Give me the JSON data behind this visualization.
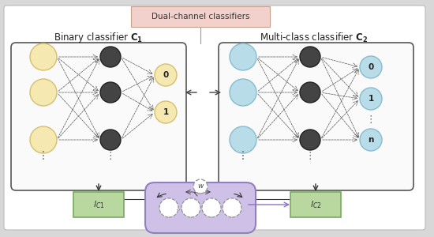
{
  "bg_color": "#d8d8d8",
  "panel_bg": "#ffffff",
  "title_box_color": "#f2d0cc",
  "title_box_edge": "#c8a090",
  "title_text": "Dual-channel classifiers",
  "left_title": "Binary classifier $\\mathbf{C_1}$",
  "right_title": "Multi-class classifier $\\mathbf{C_2}$",
  "yellow_node_color": "#f5e8b0",
  "yellow_node_edge": "#d4c070",
  "blue_node_color": "#b8dce8",
  "blue_node_edge": "#88bbd0",
  "dark_node_color": "#444444",
  "dark_node_edge": "#222222",
  "output_left_0": "0",
  "output_left_1": "1",
  "output_right_0": "0",
  "output_right_1": "1",
  "output_right_n": "n",
  "green_box_color": "#b8d8a0",
  "green_box_edge": "#78aa60",
  "capsule_color": "#cfc0e8",
  "capsule_edge": "#9080c0",
  "w_label": "w",
  "arrow_color": "#333333",
  "purple_arrow": "#9070c0",
  "conn_color": "#555555",
  "dots_color": "#666666"
}
